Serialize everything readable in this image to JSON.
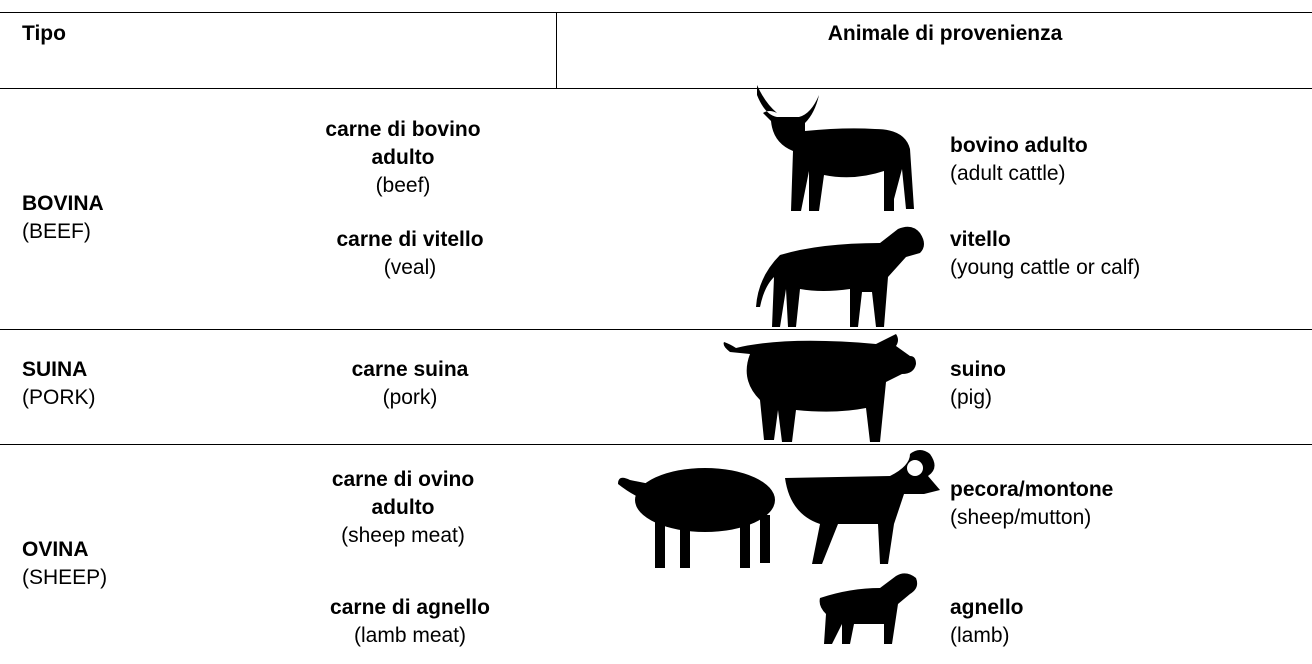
{
  "header": {
    "type": "Tipo",
    "animal": "Animale di provenienza"
  },
  "rows": [
    {
      "type": "BOVINA",
      "type_en": "(BEEF)",
      "cuts": [
        {
          "name": "carne di bovino adulto",
          "en": "(beef)"
        },
        {
          "name": "carne di vitello",
          "en": "(veal)"
        }
      ],
      "animals": [
        {
          "name": "bovino adulto",
          "en": "(adult cattle)"
        },
        {
          "name": "vitello",
          "en": "(young cattle or calf)"
        }
      ]
    },
    {
      "type": "SUINA",
      "type_en": "(PORK)",
      "cuts": [
        {
          "name": "carne suina",
          "en": "(pork)"
        }
      ],
      "animals": [
        {
          "name": "suino",
          "en": "(pig)"
        }
      ]
    },
    {
      "type": "OVINA",
      "type_en": "(SHEEP)",
      "cuts": [
        {
          "name": "carne di ovino adulto",
          "en": "(sheep meat)"
        },
        {
          "name": "carne di agnello",
          "en": "(lamb meat)"
        }
      ],
      "animals": [
        {
          "name": "pecora/montone",
          "en": "(sheep/mutton)"
        },
        {
          "name": "agnello",
          "en": "(lamb)"
        }
      ]
    }
  ]
}
